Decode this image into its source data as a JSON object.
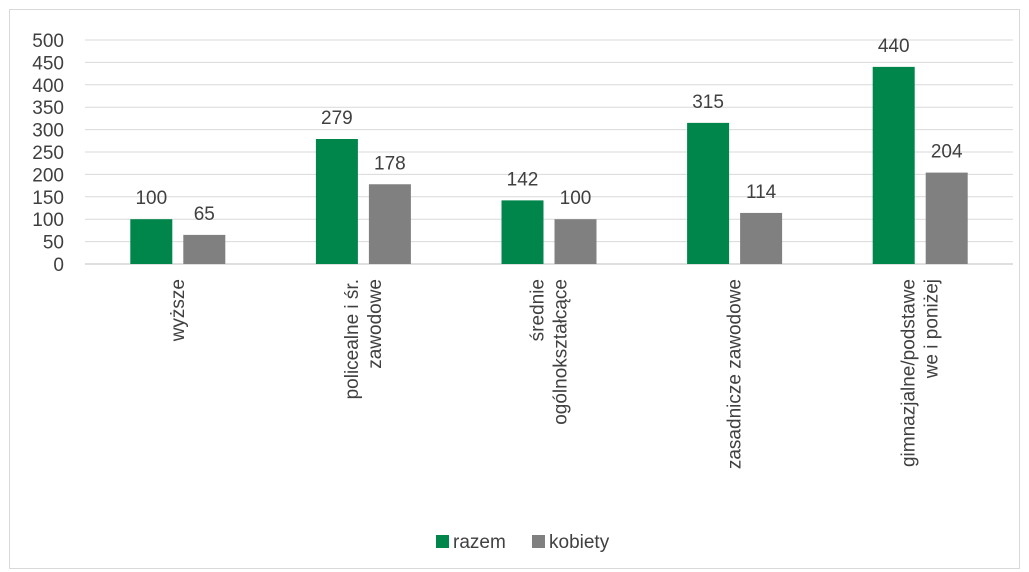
{
  "chart_data": {
    "type": "bar",
    "categories": [
      [
        "wyższe"
      ],
      [
        "policealne i śr.",
        "zawodowe"
      ],
      [
        "średnie",
        "ogólnokształcące"
      ],
      [
        "zasadnicze zawodowe"
      ],
      [
        "gimnazjalne/podstawe",
        "we i poniżej"
      ]
    ],
    "series": [
      {
        "name": "razem",
        "color": "#00854A",
        "values": [
          100,
          279,
          142,
          315,
          440
        ]
      },
      {
        "name": "kobiety",
        "color": "#808080",
        "values": [
          65,
          178,
          100,
          114,
          204
        ]
      }
    ],
    "ylim": [
      0,
      500
    ],
    "yticks": [
      0,
      50,
      100,
      150,
      200,
      250,
      300,
      350,
      400,
      450,
      500
    ],
    "grid": true,
    "legend": "bottom",
    "data_labels": true,
    "category_label_orientation": "vertical"
  }
}
